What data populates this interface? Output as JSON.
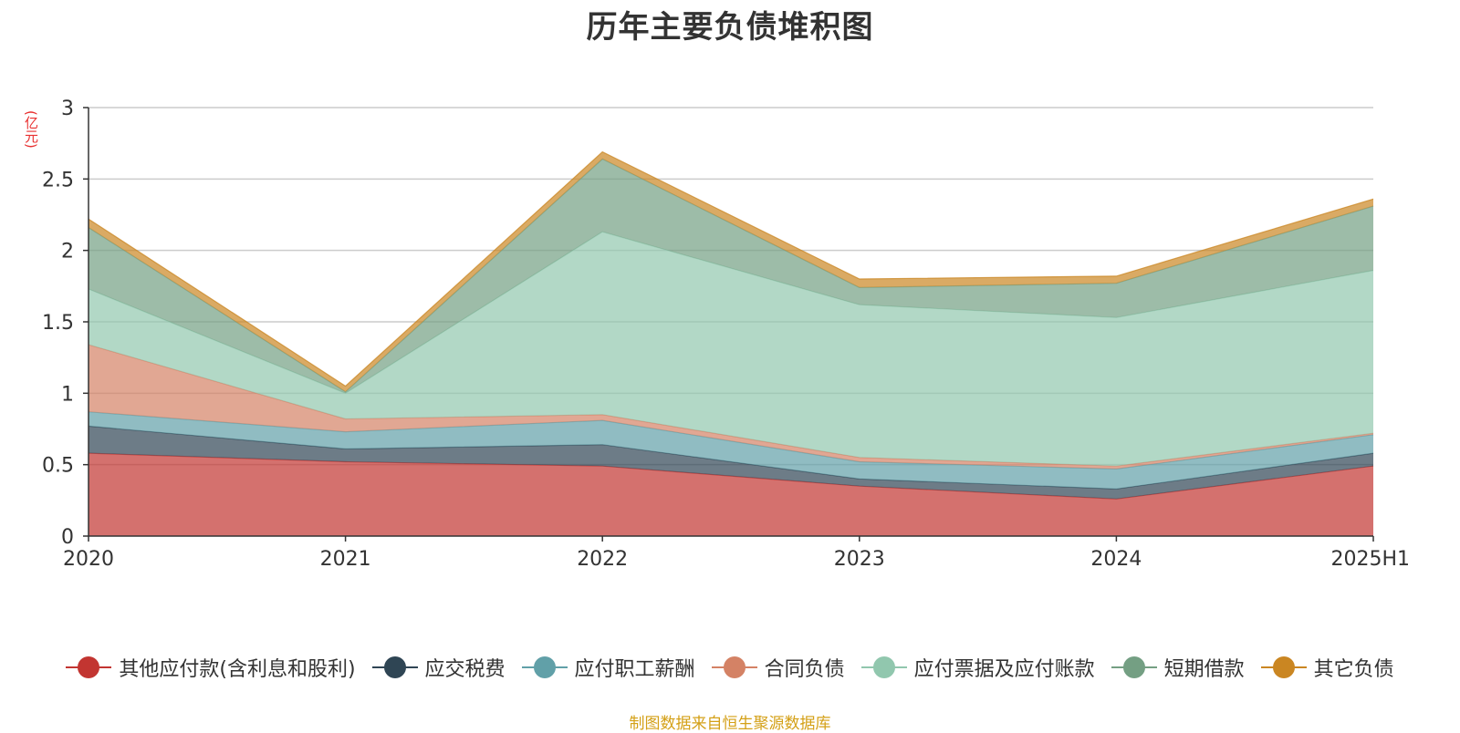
{
  "title": "历年主要负债堆积图",
  "y_unit": "(亿元)",
  "source_note": "制图数据来自恒生聚源数据库",
  "chart_data": {
    "type": "area",
    "stacked": true,
    "title": "历年主要负债堆积图",
    "ylabel": "(亿元)",
    "xlabel": "",
    "categories": [
      "2020",
      "2021",
      "2022",
      "2023",
      "2024",
      "2025H1"
    ],
    "ylim": [
      0,
      3
    ],
    "yticks": [
      "0",
      "0.5",
      "1",
      "1.5",
      "2",
      "2.5",
      "3"
    ],
    "grid": true,
    "legend_position": "bottom",
    "series": [
      {
        "name": "其他应付款(含利息和股利)",
        "color": "#c23531",
        "values": [
          0.58,
          0.52,
          0.49,
          0.35,
          0.26,
          0.49
        ]
      },
      {
        "name": "应交税费",
        "color": "#2f4554",
        "values": [
          0.19,
          0.09,
          0.15,
          0.05,
          0.07,
          0.09
        ]
      },
      {
        "name": "应付职工薪酬",
        "color": "#61a0a8",
        "values": [
          0.1,
          0.12,
          0.17,
          0.12,
          0.14,
          0.13
        ]
      },
      {
        "name": "合同负债",
        "color": "#d48265",
        "values": [
          0.47,
          0.09,
          0.04,
          0.03,
          0.02,
          0.01
        ]
      },
      {
        "name": "应付票据及应付账款",
        "color": "#91c7ae",
        "values": [
          0.39,
          0.18,
          1.28,
          1.07,
          1.04,
          1.14
        ]
      },
      {
        "name": "短期借款",
        "color": "#749f83",
        "values": [
          0.43,
          0.01,
          0.51,
          0.12,
          0.24,
          0.45
        ]
      },
      {
        "name": "其它负债",
        "color": "#ca8622",
        "values": [
          0.06,
          0.04,
          0.05,
          0.06,
          0.05,
          0.05
        ]
      }
    ]
  }
}
